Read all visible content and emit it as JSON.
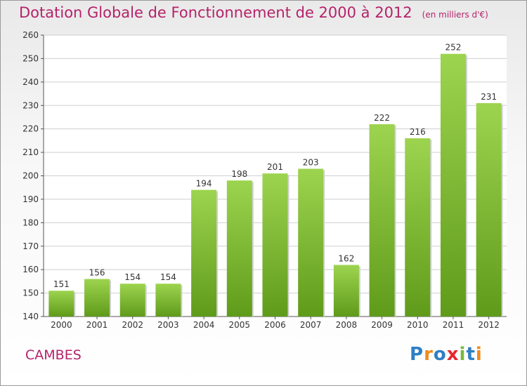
{
  "header": {
    "title": "Dotation Globale de Fonctionnement de 2000 à 2012",
    "unit": "(en milliers d'€)"
  },
  "footer": {
    "commune": "CAMBES",
    "logo_text": "Proxiti"
  },
  "colors": {
    "title": "#b5226a",
    "bar_light": "#9dd44f",
    "bar_dark": "#5f9b1a",
    "grid": "#cfcfcf"
  },
  "chart_data": {
    "type": "bar",
    "title": "Dotation Globale de Fonctionnement de 2000 à 2012",
    "subtitle": "(en milliers d'€)",
    "xlabel": "",
    "ylabel": "",
    "categories": [
      "2000",
      "2001",
      "2002",
      "2003",
      "2004",
      "2005",
      "2006",
      "2007",
      "2008",
      "2009",
      "2010",
      "2011",
      "2012"
    ],
    "values": [
      151,
      156,
      154,
      154,
      194,
      198,
      201,
      203,
      162,
      222,
      216,
      252,
      231
    ],
    "ylim": [
      140,
      260
    ],
    "yticks": [
      140,
      150,
      160,
      170,
      180,
      190,
      200,
      210,
      220,
      230,
      240,
      250,
      260
    ],
    "grid": true,
    "data_labels": true,
    "legend": "none"
  }
}
